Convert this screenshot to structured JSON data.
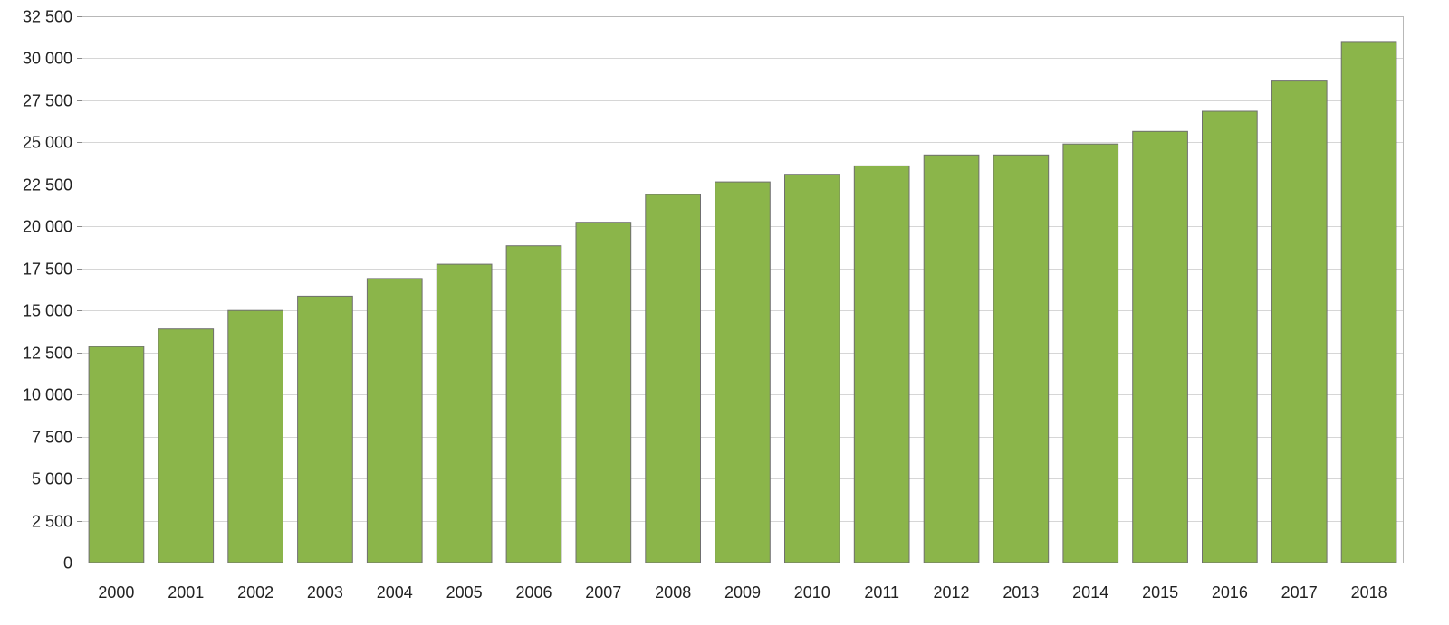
{
  "chart_data": {
    "type": "bar",
    "title": "",
    "xlabel": "",
    "ylabel": "",
    "categories": [
      "2000",
      "2001",
      "2002",
      "2003",
      "2004",
      "2005",
      "2006",
      "2007",
      "2008",
      "2009",
      "2010",
      "2011",
      "2012",
      "2013",
      "2014",
      "2015",
      "2016",
      "2017",
      "2018"
    ],
    "values": [
      12850,
      13900,
      15000,
      15850,
      16900,
      17750,
      18850,
      20250,
      21900,
      22650,
      23100,
      23600,
      24250,
      24250,
      24900,
      25650,
      26850,
      28650,
      31000
    ],
    "ylim": [
      0,
      32500
    ],
    "yticks": [
      0,
      2500,
      5000,
      7500,
      10000,
      12500,
      15000,
      17500,
      20000,
      22500,
      25000,
      27500,
      30000,
      32500
    ],
    "ytick_labels": [
      "0",
      "2 500",
      "5 000",
      "7 500",
      "10 000",
      "12 500",
      "15 000",
      "17 500",
      "20 000",
      "22 500",
      "25 000",
      "27 500",
      "30 000",
      "32 500"
    ],
    "grid": true,
    "legend": "none",
    "colors": {
      "bar_fill": "#8bb54a",
      "bar_stroke": "#6f6f6f",
      "grid": "#d6d6d6",
      "frame": "#b8b8b8"
    }
  }
}
